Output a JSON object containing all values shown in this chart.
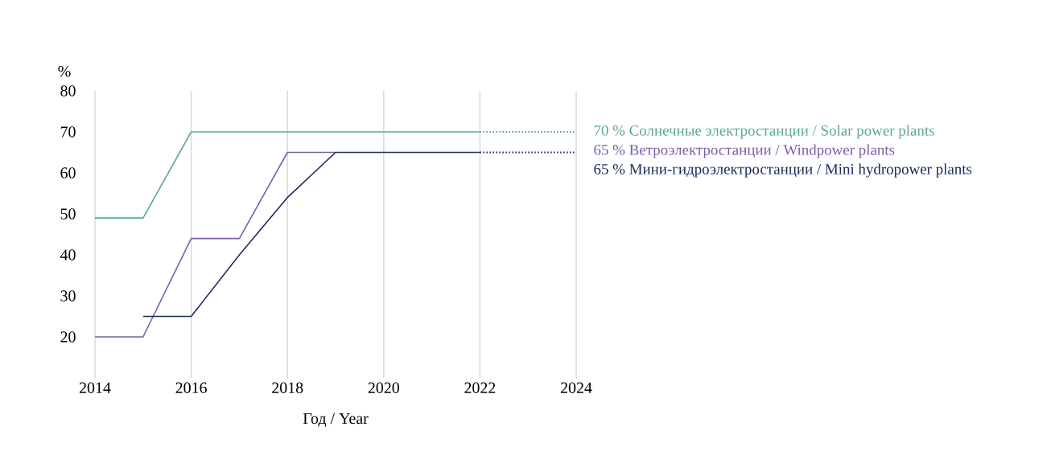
{
  "chart_data": {
    "type": "line",
    "xlabel": "Год / Year",
    "ylabel": "%",
    "xlim": [
      2014,
      2024
    ],
    "xticks": [
      2014,
      2016,
      2018,
      2020,
      2022,
      2024
    ],
    "ylim": [
      10,
      80
    ],
    "yticks": [
      20,
      30,
      40,
      50,
      60,
      70,
      80
    ],
    "grid": "x",
    "marker": "none",
    "series": [
      {
        "name": "70 %  Солнечные электростанции / Solar power plants",
        "color": "#5aa89a",
        "line_style": "solid",
        "x": [
          2014,
          2015,
          2016,
          2022
        ],
        "values": [
          49,
          49,
          70,
          70
        ]
      },
      {
        "name": "65 %  Ветроэлектростанции / Windpower plants",
        "color": "#7b5ea7",
        "line_style": "solid",
        "x": [
          2014,
          2015,
          2016,
          2017,
          2018,
          2019
        ],
        "values": [
          20,
          20,
          44,
          44,
          65,
          65
        ]
      },
      {
        "name": "65 %  Мини-гидроэлектростанции / Mini hydropower plants",
        "color": "#1c2a5e",
        "line_style": "solid",
        "x": [
          2015,
          2016,
          2017,
          2018,
          2019,
          2022
        ],
        "values": [
          25,
          25,
          40,
          54,
          65,
          65
        ]
      },
      {
        "color": "#5aa89a",
        "line_style": "dotted",
        "x": [
          2022,
          2024
        ],
        "values": [
          70,
          70
        ]
      },
      {
        "color": "#1c2a5e",
        "line_style": "dotted",
        "x": [
          2022,
          2024
        ],
        "values": [
          65,
          65
        ]
      }
    ]
  }
}
